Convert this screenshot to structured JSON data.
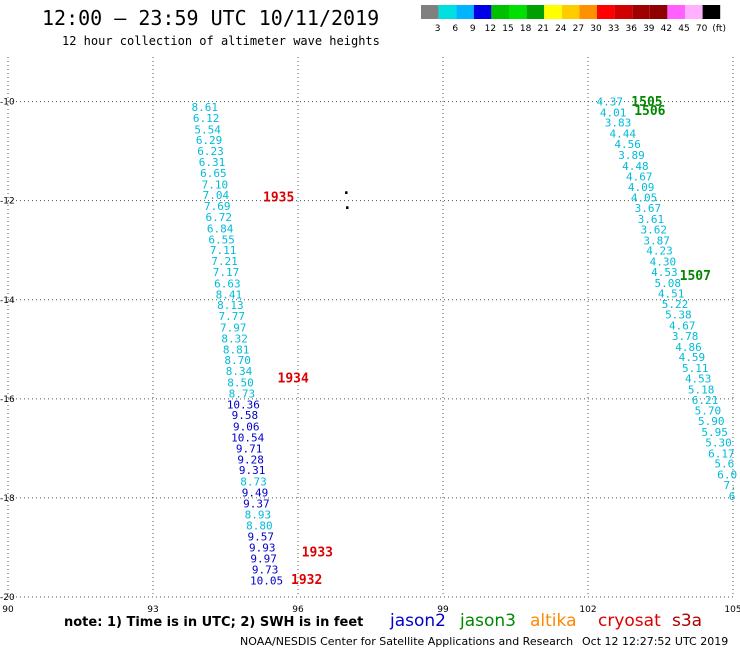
{
  "header": {
    "title": "12:00 – 23:59 UTC 10/11/2019",
    "subtitle": "12 hour collection of altimeter wave heights"
  },
  "colorbar": {
    "colors": [
      "#808080",
      "#00e0e0",
      "#00b4ff",
      "#0000e6",
      "#00c000",
      "#00e000",
      "#00a000",
      "#ffff00",
      "#ffcc00",
      "#ff9000",
      "#ff0000",
      "#d00000",
      "#a00000",
      "#900000",
      "#ff60ff",
      "#ffb0ff",
      "#000000"
    ],
    "labels": [
      "3",
      "6",
      "9",
      "12",
      "15",
      "18",
      "21",
      "24",
      "27",
      "30",
      "33",
      "36",
      "39",
      "42",
      "45",
      "70",
      "(ft)"
    ]
  },
  "footer": {
    "note": "note:  1) Time is in UTC; 2) SWH is in feet",
    "satellites": [
      {
        "name": "jason2",
        "color": "#0000cc"
      },
      {
        "name": "jason3",
        "color": "#008800"
      },
      {
        "name": "altika",
        "color": "#ff8800"
      },
      {
        "name": "cryosat",
        "color": "#dd0000"
      },
      {
        "name": "s3a",
        "color": "#aa0000"
      }
    ],
    "credit": "NOAA/NESDIS Center for Satellite Applications and Research",
    "timestamp": "Oct 12 12:27:52 UTC 2019"
  },
  "chart_data": {
    "type": "scatter",
    "xlim": [
      90,
      105
    ],
    "ylim": [
      -20,
      -9.1
    ],
    "xticks": [
      90,
      93,
      96,
      99,
      102,
      105
    ],
    "yticks": [
      -10,
      -12,
      -14,
      -16,
      -18,
      -20
    ],
    "xtick_labels": [
      "90",
      "93",
      "96",
      "99",
      "102",
      "105"
    ],
    "ytick_labels": [
      "-10",
      "-12",
      "-14",
      "-16",
      "-18",
      "-20"
    ],
    "grid": true,
    "tracks": [
      {
        "points": [
          {
            "x": 94.07,
            "y": -10.11,
            "v": "8.61",
            "c": "#00bcd8"
          },
          {
            "x": 94.1,
            "y": -10.33,
            "v": "6.12",
            "c": "#00bcd8"
          },
          {
            "x": 94.13,
            "y": -10.56,
            "v": "5.54",
            "c": "#00bcd8"
          },
          {
            "x": 94.16,
            "y": -10.78,
            "v": "6.29",
            "c": "#00bcd8"
          },
          {
            "x": 94.19,
            "y": -11.0,
            "v": "6.23",
            "c": "#00bcd8"
          },
          {
            "x": 94.22,
            "y": -11.22,
            "v": "6.31",
            "c": "#00bcd8"
          },
          {
            "x": 94.25,
            "y": -11.44,
            "v": "6.65",
            "c": "#00bcd8"
          },
          {
            "x": 94.28,
            "y": -11.67,
            "v": "7.10",
            "c": "#00bcd8"
          },
          {
            "x": 94.3,
            "y": -11.89,
            "v": "7.04",
            "c": "#00bcd8"
          },
          {
            "x": 94.33,
            "y": -12.11,
            "v": "7.69",
            "c": "#00bcd8"
          },
          {
            "x": 94.36,
            "y": -12.33,
            "v": "6.72",
            "c": "#00bcd8"
          },
          {
            "x": 94.39,
            "y": -12.56,
            "v": "6.84",
            "c": "#00bcd8"
          },
          {
            "x": 94.42,
            "y": -12.78,
            "v": "6.55",
            "c": "#00bcd8"
          },
          {
            "x": 94.45,
            "y": -13.0,
            "v": "7.11",
            "c": "#00bcd8"
          },
          {
            "x": 94.48,
            "y": -13.22,
            "v": "7.21",
            "c": "#00bcd8"
          },
          {
            "x": 94.51,
            "y": -13.44,
            "v": "7.17",
            "c": "#00bcd8"
          },
          {
            "x": 94.54,
            "y": -13.67,
            "v": "6.63",
            "c": "#00bcd8"
          },
          {
            "x": 94.57,
            "y": -13.89,
            "v": "8.41",
            "c": "#00bcd8"
          },
          {
            "x": 94.6,
            "y": -14.11,
            "v": "8.13",
            "c": "#00bcd8"
          },
          {
            "x": 94.63,
            "y": -14.33,
            "v": "7.77",
            "c": "#00bcd8"
          },
          {
            "x": 94.66,
            "y": -14.56,
            "v": "7.97",
            "c": "#00bcd8"
          },
          {
            "x": 94.69,
            "y": -14.78,
            "v": "8.32",
            "c": "#00bcd8"
          },
          {
            "x": 94.72,
            "y": -15.0,
            "v": "8.81",
            "c": "#00bcd8"
          },
          {
            "x": 94.75,
            "y": -15.22,
            "v": "8.70",
            "c": "#00bcd8"
          },
          {
            "x": 94.78,
            "y": -15.44,
            "v": "8.34",
            "c": "#00bcd8"
          },
          {
            "x": 94.81,
            "y": -15.67,
            "v": "8.50",
            "c": "#00bcd8"
          },
          {
            "x": 94.84,
            "y": -15.89,
            "v": "8.73",
            "c": "#00bcd8"
          },
          {
            "x": 94.87,
            "y": -16.11,
            "v": "10.36",
            "c": "#0000cc"
          },
          {
            "x": 94.9,
            "y": -16.33,
            "v": "9.58",
            "c": "#0000cc"
          },
          {
            "x": 94.93,
            "y": -16.56,
            "v": "9.06",
            "c": "#0000cc"
          },
          {
            "x": 94.96,
            "y": -16.78,
            "v": "10.54",
            "c": "#0000cc"
          },
          {
            "x": 94.99,
            "y": -17.0,
            "v": "9.71",
            "c": "#0000cc"
          },
          {
            "x": 95.02,
            "y": -17.22,
            "v": "9.28",
            "c": "#0000cc"
          },
          {
            "x": 95.05,
            "y": -17.44,
            "v": "9.31",
            "c": "#0000cc"
          },
          {
            "x": 95.08,
            "y": -17.67,
            "v": "8.73",
            "c": "#00bcd8"
          },
          {
            "x": 95.11,
            "y": -17.89,
            "v": "9.49",
            "c": "#0000cc"
          },
          {
            "x": 95.14,
            "y": -18.11,
            "v": "9.37",
            "c": "#0000cc"
          },
          {
            "x": 95.17,
            "y": -18.33,
            "v": "8.93",
            "c": "#00bcd8"
          },
          {
            "x": 95.2,
            "y": -18.56,
            "v": "8.80",
            "c": "#00bcd8"
          },
          {
            "x": 95.23,
            "y": -18.78,
            "v": "9.57",
            "c": "#0000cc"
          },
          {
            "x": 95.26,
            "y": -19.0,
            "v": "9.93",
            "c": "#0000cc"
          },
          {
            "x": 95.29,
            "y": -19.22,
            "v": "9.97",
            "c": "#0000cc"
          },
          {
            "x": 95.32,
            "y": -19.44,
            "v": "9.73",
            "c": "#0000cc"
          },
          {
            "x": 95.35,
            "y": -19.67,
            "v": "10.05",
            "c": "#0000cc"
          }
        ],
        "time_labels": [
          {
            "text": "1935",
            "x": 95.6,
            "y": -11.92,
            "c": "#dd0000"
          },
          {
            "text": "1934",
            "x": 95.9,
            "y": -15.57,
            "c": "#dd0000"
          },
          {
            "text": "1933",
            "x": 96.4,
            "y": -19.08,
            "c": "#dd0000"
          },
          {
            "text": "1932",
            "x": 96.18,
            "y": -19.64,
            "c": "#dd0000"
          }
        ]
      },
      {
        "points": [
          {
            "x": 102.45,
            "y": -10.0,
            "v": "4.37",
            "c": "#00bcd8"
          },
          {
            "x": 102.52,
            "y": -10.22,
            "v": "4.01",
            "c": "#00bcd8"
          },
          {
            "x": 102.62,
            "y": -10.42,
            "v": "3.83",
            "c": "#00bcd8"
          },
          {
            "x": 102.72,
            "y": -10.64,
            "v": "4.44",
            "c": "#00bcd8"
          },
          {
            "x": 102.82,
            "y": -10.86,
            "v": "4.56",
            "c": "#00bcd8"
          },
          {
            "x": 102.9,
            "y": -11.08,
            "v": "3.89",
            "c": "#00bcd8"
          },
          {
            "x": 102.98,
            "y": -11.3,
            "v": "4.48",
            "c": "#00bcd8"
          },
          {
            "x": 103.06,
            "y": -11.51,
            "v": "4.67",
            "c": "#00bcd8"
          },
          {
            "x": 103.1,
            "y": -11.72,
            "v": "4.09",
            "c": "#00bcd8"
          },
          {
            "x": 103.16,
            "y": -11.94,
            "v": "4.05",
            "c": "#00bcd8"
          },
          {
            "x": 103.24,
            "y": -12.15,
            "v": "3.67",
            "c": "#00bcd8"
          },
          {
            "x": 103.3,
            "y": -12.37,
            "v": "3.61",
            "c": "#00bcd8"
          },
          {
            "x": 103.36,
            "y": -12.58,
            "v": "3.62",
            "c": "#00bcd8"
          },
          {
            "x": 103.42,
            "y": -12.8,
            "v": "3.87",
            "c": "#00bcd8"
          },
          {
            "x": 103.48,
            "y": -13.01,
            "v": "4.23",
            "c": "#00bcd8"
          },
          {
            "x": 103.55,
            "y": -13.23,
            "v": "4.30",
            "c": "#00bcd8"
          },
          {
            "x": 103.58,
            "y": -13.44,
            "v": "4.53",
            "c": "#00bcd8"
          },
          {
            "x": 103.65,
            "y": -13.66,
            "v": "5.08",
            "c": "#00bcd8"
          },
          {
            "x": 103.72,
            "y": -13.87,
            "v": "4.51",
            "c": "#00bcd8"
          },
          {
            "x": 103.8,
            "y": -14.09,
            "v": "5.22",
            "c": "#00bcd8"
          },
          {
            "x": 103.87,
            "y": -14.3,
            "v": "5.38",
            "c": "#00bcd8"
          },
          {
            "x": 103.95,
            "y": -14.52,
            "v": "4.67",
            "c": "#00bcd8"
          },
          {
            "x": 104.01,
            "y": -14.73,
            "v": "3.78",
            "c": "#00bcd8"
          },
          {
            "x": 104.08,
            "y": -14.95,
            "v": "4.86",
            "c": "#00bcd8"
          },
          {
            "x": 104.15,
            "y": -15.16,
            "v": "4.59",
            "c": "#00bcd8"
          },
          {
            "x": 104.22,
            "y": -15.38,
            "v": "5.11",
            "c": "#00bcd8"
          },
          {
            "x": 104.28,
            "y": -15.59,
            "v": "4.53",
            "c": "#00bcd8"
          },
          {
            "x": 104.34,
            "y": -15.81,
            "v": "5.18",
            "c": "#00bcd8"
          },
          {
            "x": 104.42,
            "y": -16.02,
            "v": "6.21",
            "c": "#00bcd8"
          },
          {
            "x": 104.48,
            "y": -16.24,
            "v": "5.70",
            "c": "#00bcd8"
          },
          {
            "x": 104.55,
            "y": -16.45,
            "v": "5.90",
            "c": "#00bcd8"
          },
          {
            "x": 104.62,
            "y": -16.67,
            "v": "5.95",
            "c": "#00bcd8"
          },
          {
            "x": 104.7,
            "y": -16.88,
            "v": "5.30",
            "c": "#00bcd8"
          },
          {
            "x": 104.76,
            "y": -17.1,
            "v": "6.17",
            "c": "#00bcd8"
          },
          {
            "x": 104.82,
            "y": -17.31,
            "v": "5.6",
            "c": "#00bcd8"
          },
          {
            "x": 104.88,
            "y": -17.53,
            "v": "6.0",
            "c": "#00bcd8"
          },
          {
            "x": 104.94,
            "y": -17.74,
            "v": "7.",
            "c": "#00bcd8"
          },
          {
            "x": 104.98,
            "y": -17.96,
            "v": "6",
            "c": "#00bcd8"
          }
        ],
        "time_labels": [
          {
            "text": "1505",
            "x": 103.22,
            "y": -9.99,
            "c": "#008800"
          },
          {
            "text": "1506",
            "x": 103.28,
            "y": -10.17,
            "c": "#008800"
          },
          {
            "text": "1507",
            "x": 104.22,
            "y": -13.5,
            "c": "#008800"
          }
        ]
      }
    ],
    "markers": [
      {
        "x": 97.0,
        "y": -11.88,
        "text": "·"
      },
      {
        "x": 97.02,
        "y": -12.18,
        "text": "·"
      }
    ]
  }
}
